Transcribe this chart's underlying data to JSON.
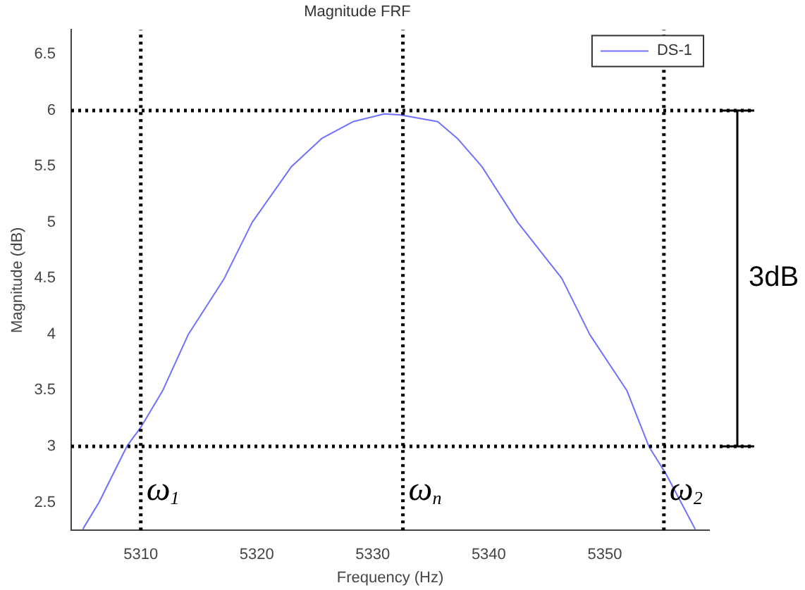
{
  "chart_data": {
    "type": "line",
    "title": "Magnitude FRF",
    "xlabel": "Frequency (Hz)",
    "ylabel": "Magnitude (dB)",
    "x": [
      5305.0,
      5306.4,
      5308.8,
      5310,
      5311.9,
      5314.1,
      5317.2,
      5319.6,
      5323.0,
      5325.6,
      5328.3,
      5331.0,
      5332.4,
      5335.6,
      5337.3,
      5339.4,
      5342.5,
      5346.3,
      5348.7,
      5351.9,
      5353.8,
      5355.3,
      5357.8
    ],
    "series": [
      {
        "name": "DS-1",
        "color": "#7070ff",
        "values": [
          2.26,
          2.5,
          3.0,
          3.17,
          3.5,
          4.0,
          4.5,
          5.0,
          5.5,
          5.75,
          5.9,
          5.97,
          5.96,
          5.9,
          5.75,
          5.5,
          5.0,
          4.5,
          4.0,
          3.5,
          3.0,
          2.75,
          2.26
        ]
      }
    ],
    "xlim": [
      5304,
      5359
    ],
    "xticks": [
      5310,
      5320,
      5330,
      5340,
      5350
    ],
    "ylim": [
      2.25,
      6.72
    ],
    "yticks": [
      2.5,
      3,
      3.5,
      4,
      4.5,
      5,
      5.5,
      6,
      6.5
    ],
    "ref_lines": [
      {
        "axis": "y",
        "value": 6,
        "line_style": "dotted",
        "color": "#000000"
      },
      {
        "axis": "y",
        "value": 3,
        "line_style": "dotted",
        "color": "#000000"
      },
      {
        "axis": "x",
        "value": 5310,
        "line_style": "dotted",
        "color": "#000000"
      },
      {
        "axis": "x",
        "value": 5332.6,
        "line_style": "dotted",
        "color": "#000000"
      },
      {
        "axis": "x",
        "value": 5355.1,
        "line_style": "dotted",
        "color": "#000000"
      }
    ],
    "annotations": [
      {
        "text": "ω$_{1}$",
        "x": 5310,
        "y": 2.6
      },
      {
        "text": "ω$_{n}$",
        "x": 5332.6,
        "y": 2.6
      },
      {
        "text": "ω$_{2}$",
        "x": 5355.1,
        "y": 2.6
      },
      "3dB"
    ],
    "legend": "top right",
    "grid": false,
    "marker": "none",
    "line_style": "solid"
  }
}
